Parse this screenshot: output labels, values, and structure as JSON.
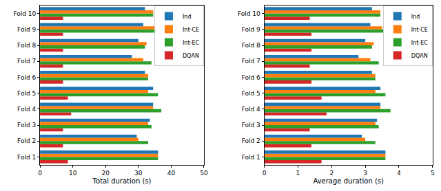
{
  "chart_data": [
    {
      "type": "bar",
      "orientation": "horizontal",
      "legend": "upper right",
      "grid": false,
      "xlabel": "Total duration (s)",
      "categories": [
        "Fold 1",
        "Fold 2",
        "Fold 3",
        "Fold 4",
        "Fold 5",
        "Fold 6",
        "Fold 7",
        "Fold 8",
        "Fold 9",
        "Fold 10"
      ],
      "xlim": [
        0,
        50
      ],
      "xticks": [
        0,
        10,
        20,
        30,
        40,
        50
      ],
      "series": [
        {
          "name": "Ind",
          "color": "#1f77b4",
          "values": [
            36,
            29.5,
            33.5,
            34.5,
            34.5,
            32,
            28,
            30,
            31.5,
            32
          ]
        },
        {
          "name": "Int-CE",
          "color": "#ff7f0e",
          "values": [
            36,
            30,
            33,
            34.5,
            33,
            33,
            31.5,
            32.5,
            35,
            34.5
          ]
        },
        {
          "name": "Int-EC",
          "color": "#2ca02c",
          "values": [
            36,
            33,
            34,
            37,
            36,
            33,
            34,
            32,
            35.5,
            34.5
          ]
        },
        {
          "name": "DQAN",
          "color": "#d62728",
          "values": [
            8.5,
            7,
            7,
            9.5,
            8.5,
            7,
            7,
            7,
            7,
            7
          ]
        }
      ]
    },
    {
      "type": "bar",
      "orientation": "horizontal",
      "legend": "upper right",
      "grid": false,
      "xlabel": "Average duration (s)",
      "categories": [
        "Fold 1",
        "Fold 2",
        "Fold 3",
        "Fold 4",
        "Fold 5",
        "Fold 6",
        "Fold 7",
        "Fold 8",
        "Fold 9",
        "Fold 10"
      ],
      "xlim": [
        0,
        5
      ],
      "xticks": [
        0,
        1,
        2,
        3,
        4,
        5
      ],
      "series": [
        {
          "name": "Ind",
          "color": "#1f77b4",
          "values": [
            3.6,
            2.9,
            3.35,
            3.45,
            3.45,
            3.2,
            2.8,
            3.0,
            3.15,
            3.2
          ]
        },
        {
          "name": "Int-CE",
          "color": "#ff7f0e",
          "values": [
            3.6,
            3.0,
            3.3,
            3.45,
            3.3,
            3.3,
            3.15,
            3.25,
            3.5,
            3.45
          ]
        },
        {
          "name": "Int-EC",
          "color": "#2ca02c",
          "values": [
            3.6,
            3.3,
            3.4,
            3.75,
            3.6,
            3.3,
            3.4,
            3.2,
            3.55,
            3.45
          ]
        },
        {
          "name": "DQAN",
          "color": "#d62728",
          "values": [
            1.7,
            1.4,
            1.35,
            1.85,
            1.7,
            1.4,
            1.35,
            1.4,
            1.4,
            1.35
          ]
        }
      ]
    }
  ]
}
